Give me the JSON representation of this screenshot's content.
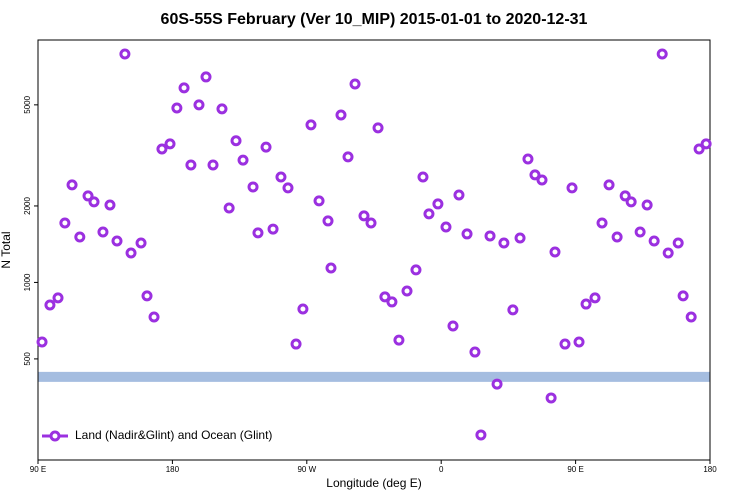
{
  "chart_data": {
    "type": "scatter",
    "title": "60S-55S February (Ver 10_MIP)   2015-01-01 to 2020-12-31",
    "x_label": "Longitude (deg E)",
    "y_label": "N Total",
    "log_y": true,
    "legend": "bottom-left",
    "xlim": [
      90,
      540
    ],
    "xticks": [
      {
        "value": 90,
        "label": "90 E"
      },
      180,
      {
        "value": 270,
        "label": "90 W"
      },
      {
        "value": 360,
        "label": "0"
      },
      {
        "value": 450,
        "label": "90 E"
      },
      {
        "value": 540,
        "label": "180"
      }
    ],
    "ylim": [
      200,
      9000
    ],
    "yticks": [
      500,
      1000,
      2000,
      5000
    ],
    "hline": {
      "value": 425,
      "color": "#a5bde0"
    },
    "series": [
      {
        "name": "Land (Nadir&Glint) and Ocean (Glint)",
        "color": "#9b30e0",
        "x": [
          92.7,
          98,
          103.4,
          108,
          112.8,
          118,
          123.5,
          127.5,
          133.5,
          138.2,
          142.9,
          148.2,
          152.3,
          159,
          163,
          167.7,
          173,
          178.4,
          183,
          187.8,
          192.4,
          197.8,
          202.5,
          207.2,
          213.2,
          218,
          222.6,
          227.3,
          234,
          237.3,
          242.7,
          247.4,
          252.7,
          257.4,
          262.8,
          267.4,
          272.8,
          278.2,
          284.2,
          286.2,
          292.9,
          297.6,
          302.3,
          308.3,
          313,
          317.7,
          322.3,
          327,
          331.7,
          337.1,
          343.1,
          347.8,
          351.8,
          357.8,
          363.2,
          367.9,
          371.9,
          377.3,
          382.6,
          386.6,
          392.7,
          397.4,
          402,
          408,
          412.8,
          418.1,
          422.8,
          427.5,
          433.6,
          436.2,
          442.9,
          447.6,
          452.3,
          457,
          463,
          467.7,
          472.4,
          477.8,
          483.2,
          487.2,
          493.2,
          497.9,
          502.6,
          508,
          512,
          518.7,
          522,
          527.4,
          532.7,
          537.4
        ],
        "values": [
          583,
          815,
          869,
          1714,
          2420,
          1510,
          2190,
          2075,
          1580,
          2018,
          1456,
          7930,
          1306,
          1430,
          885,
          731,
          3350,
          3510,
          4860,
          5830,
          2900,
          5000,
          6440,
          2900,
          4820,
          1963,
          3610,
          3030,
          2376,
          1567,
          3410,
          1622,
          2600,
          2355,
          572,
          786,
          4170,
          2094,
          1746,
          1140,
          4560,
          3120,
          6040,
          1828,
          1714,
          4060,
          877,
          838,
          593,
          925,
          1120,
          2600,
          1862,
          2037,
          1652,
          674,
          2209,
          1552,
          532,
          251,
          1524,
          398,
          1430,
          780,
          1496,
          3060,
          2650,
          2530,
          351,
          1318,
          572,
          2355,
          583,
          822,
          869,
          1714,
          2420,
          1510,
          2190,
          2075,
          1580,
          2018,
          1456,
          7930,
          1306,
          1430,
          885,
          731,
          3350,
          3510
        ]
      }
    ]
  }
}
